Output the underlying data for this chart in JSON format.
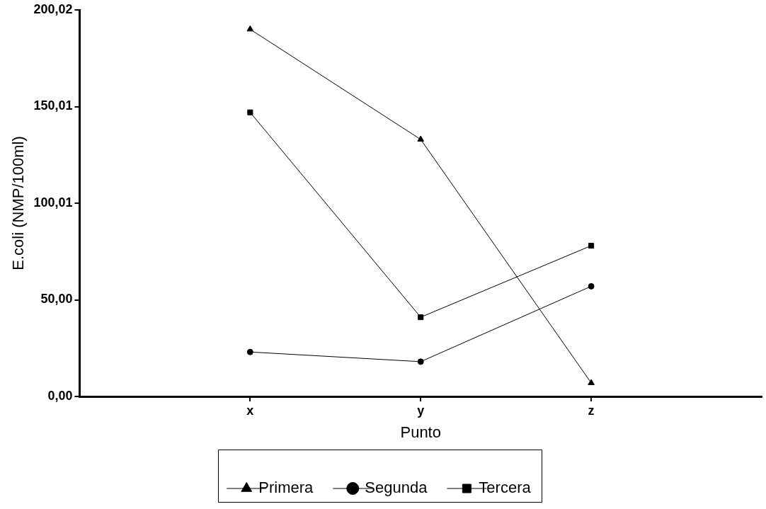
{
  "chart_data": {
    "type": "line",
    "xlabel": "Punto",
    "ylabel": "E.coli (NMP/100ml)",
    "categories": [
      "x",
      "y",
      "z"
    ],
    "ylim": [
      0,
      200.02
    ],
    "yticks": [
      {
        "value": 0,
        "label": "0,00"
      },
      {
        "value": 50,
        "label": "50,00"
      },
      {
        "value": 100.01,
        "label": "100,01"
      },
      {
        "value": 150.01,
        "label": "150,01"
      },
      {
        "value": 200.02,
        "label": "200,02"
      }
    ],
    "grid": false,
    "legend": "bottom",
    "line_style": "solid",
    "series": [
      {
        "name": "Primera",
        "color": "#000000",
        "marker": "triangle",
        "values": [
          190,
          133,
          7
        ]
      },
      {
        "name": "Segunda",
        "color": "#000000",
        "marker": "circle",
        "values": [
          23,
          18,
          57
        ]
      },
      {
        "name": "Tercera",
        "color": "#000000",
        "marker": "square",
        "values": [
          147,
          41,
          78
        ]
      }
    ]
  }
}
